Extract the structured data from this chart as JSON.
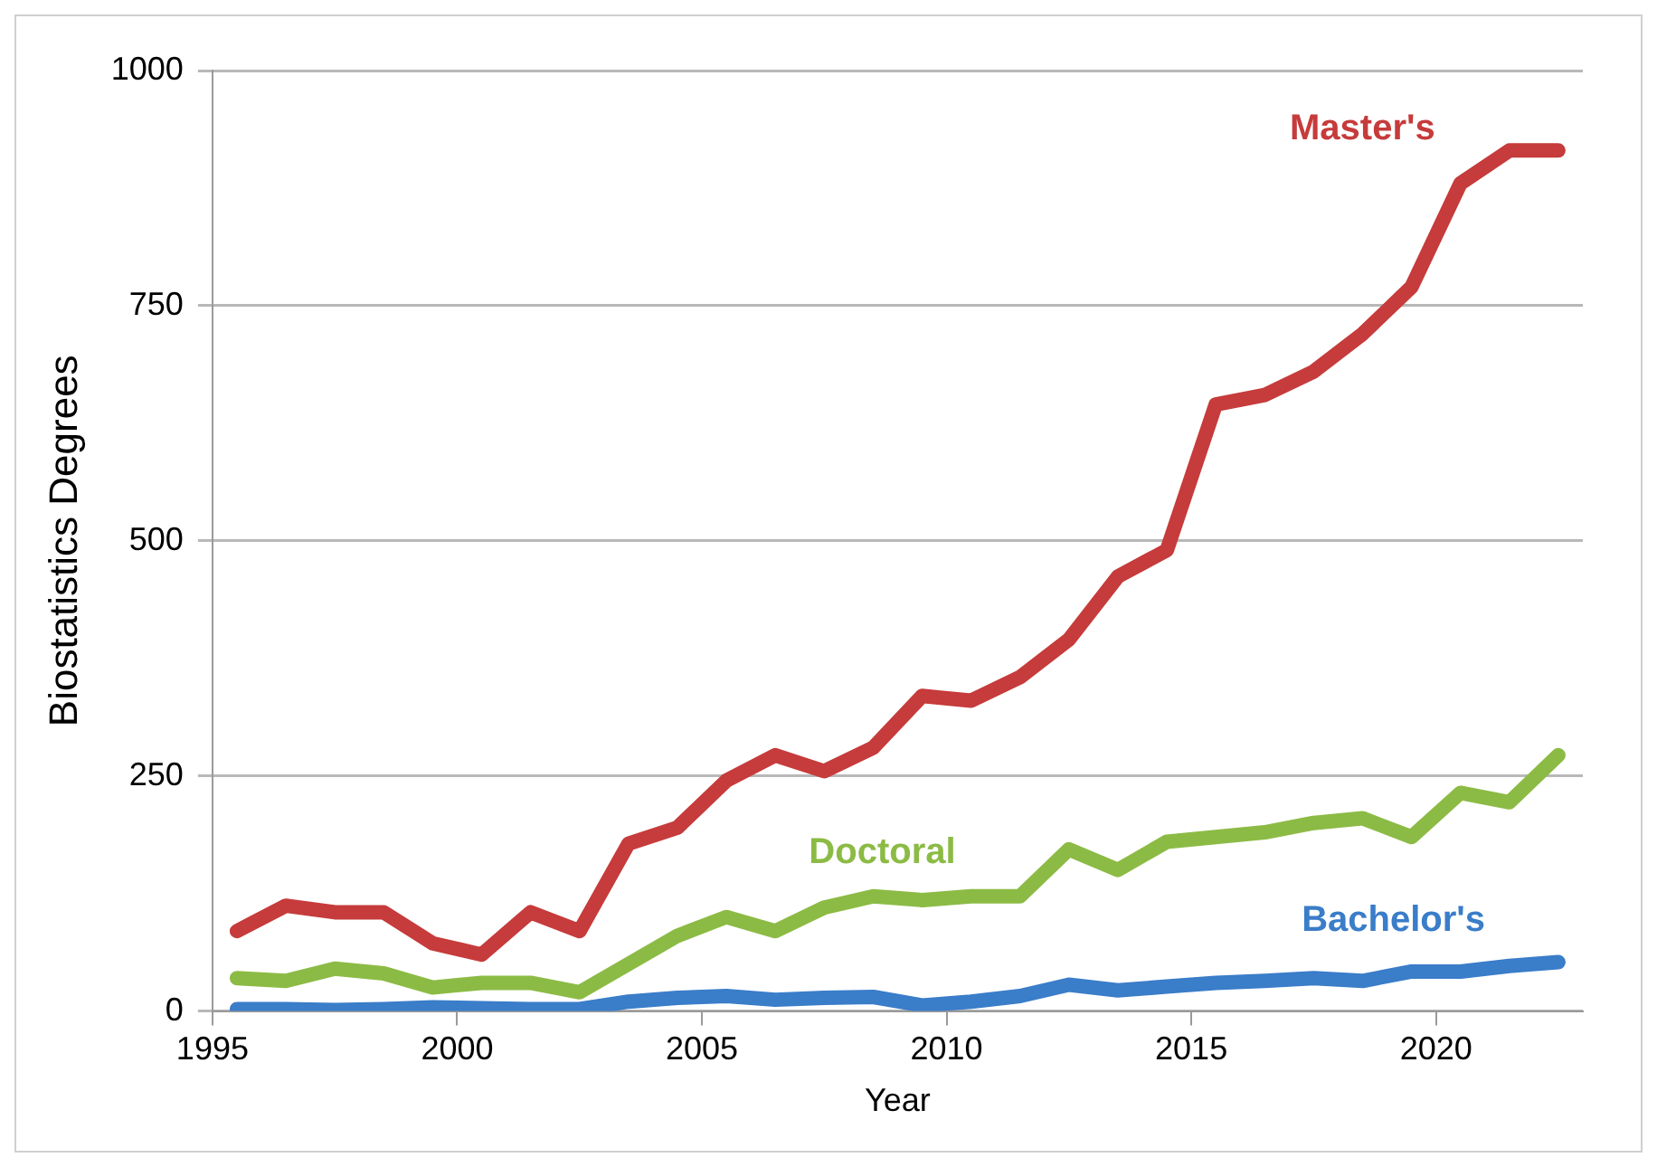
{
  "chart_data": {
    "type": "line",
    "xlabel": "Year",
    "ylabel": "Biostatistics Degrees",
    "x": [
      1995.5,
      1996.5,
      1997.5,
      1998.5,
      1999.5,
      2000.5,
      2001.5,
      2002.5,
      2003.5,
      2004.5,
      2005.5,
      2006.5,
      2007.5,
      2008.5,
      2009.5,
      2010.5,
      2011.5,
      2012.5,
      2013.5,
      2014.5,
      2015.5,
      2016.5,
      2017.5,
      2018.5,
      2019.5,
      2020.5,
      2021.5,
      2022.5
    ],
    "series": [
      {
        "name": "Master's",
        "color": "#c63b3b",
        "values": [
          85,
          112,
          105,
          105,
          72,
          60,
          105,
          85,
          178,
          195,
          245,
          272,
          255,
          280,
          335,
          330,
          355,
          395,
          462,
          490,
          645,
          655,
          680,
          720,
          770,
          880,
          915,
          915
        ]
      },
      {
        "name": "Doctoral",
        "color": "#8cbb45",
        "values": [
          35,
          32,
          45,
          40,
          25,
          30,
          30,
          20,
          50,
          80,
          100,
          85,
          110,
          122,
          118,
          122,
          122,
          172,
          150,
          180,
          185,
          190,
          200,
          205,
          185,
          232,
          222,
          272
        ]
      },
      {
        "name": "Bachelor's",
        "color": "#3a7dc9",
        "values": [
          2,
          2,
          1,
          2,
          4,
          3,
          2,
          2,
          10,
          14,
          16,
          12,
          14,
          15,
          6,
          10,
          16,
          28,
          22,
          26,
          30,
          32,
          35,
          32,
          42,
          42,
          48,
          52
        ]
      }
    ],
    "xlim": [
      1995,
      2023
    ],
    "xticks": [
      1995,
      2000,
      2005,
      2010,
      2015,
      2020
    ],
    "ylim": [
      0,
      1000
    ],
    "yticks": [
      0,
      250,
      500,
      750,
      1000
    ],
    "grid": "y",
    "legend": false,
    "marker": "none",
    "line_style": "solid"
  }
}
